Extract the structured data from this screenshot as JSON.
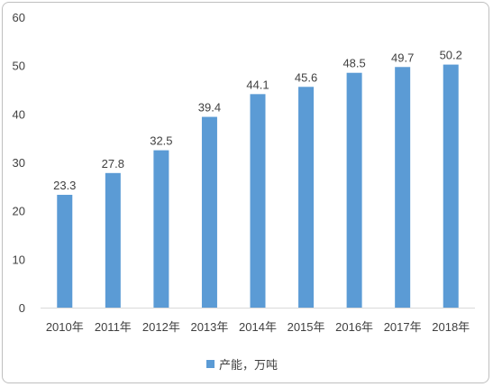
{
  "chart_data": {
    "type": "bar",
    "categories": [
      "2010年",
      "2011年",
      "2012年",
      "2013年",
      "2014年",
      "2015年",
      "2016年",
      "2017年",
      "2018年"
    ],
    "series": [
      {
        "name": "产能，万吨",
        "values": [
          23.3,
          27.8,
          32.5,
          39.4,
          44.1,
          45.6,
          48.5,
          49.7,
          50.2
        ]
      }
    ],
    "ylim": [
      0,
      60
    ],
    "yticks": [
      0,
      10,
      20,
      30,
      40,
      50,
      60
    ],
    "grid": false,
    "legend": "bottom",
    "data_labels": true,
    "bar_color": "#5b9bd5"
  }
}
